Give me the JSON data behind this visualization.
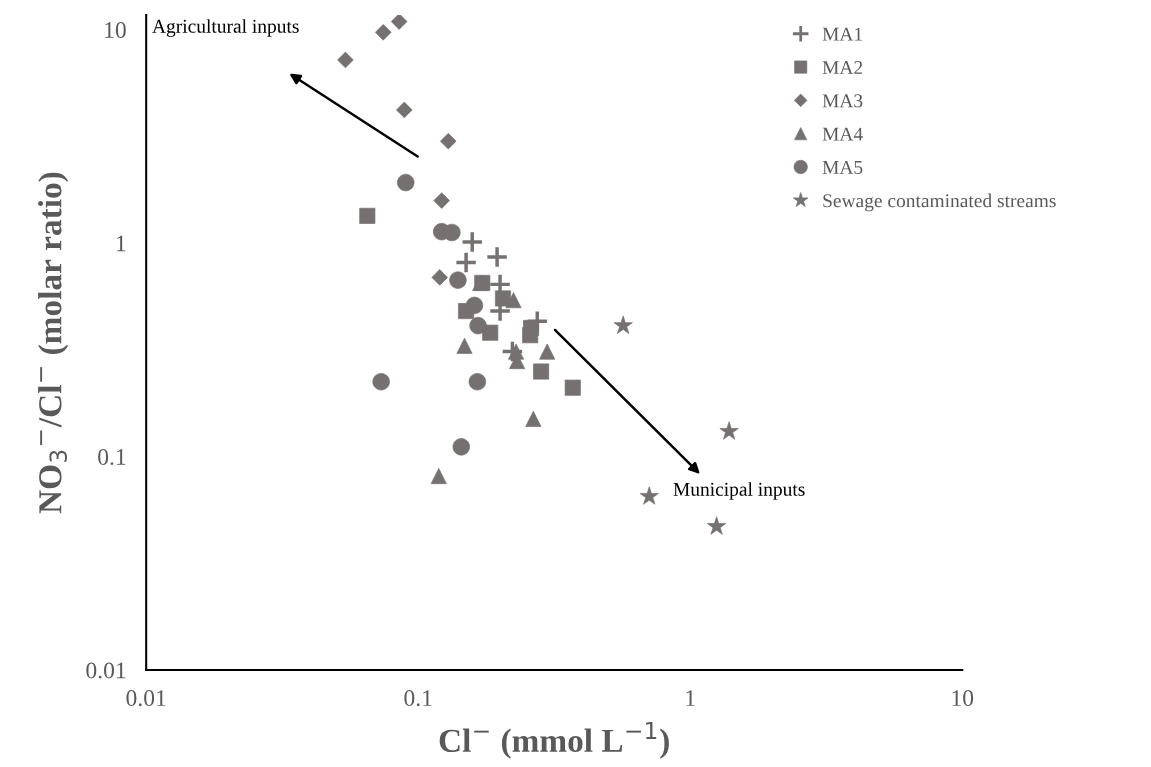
{
  "chart_data": {
    "type": "scatter",
    "xlabel": "Cl$^{−}$ (mmol L$^{−1}$)",
    "ylabel": "NO$_{3}$$^{−}$/Cl$^{−}$ (molar ratio)",
    "log": "xy",
    "xlim": [
      0.01,
      10
    ],
    "ylim": [
      0.01,
      11.7
    ],
    "xticks": [
      0.01,
      0.1,
      1,
      10
    ],
    "yticks": [
      0.01,
      0.1,
      1,
      10
    ],
    "grid": false,
    "legend": "top right",
    "series": [
      {
        "name": "MA1",
        "color": "#767171",
        "marker": "cross",
        "x": [
          0.158,
          0.195,
          0.15,
          0.2,
          0.2,
          0.274,
          0.222
        ],
        "values": [
          1.01,
          0.86,
          0.81,
          0.64,
          0.48,
          0.43,
          0.31
        ]
      },
      {
        "name": "MA2",
        "color": "#767171",
        "marker": "square",
        "x": [
          0.065,
          0.172,
          0.205,
          0.15,
          0.184,
          0.258,
          0.26,
          0.283,
          0.37
        ],
        "values": [
          1.34,
          0.65,
          0.55,
          0.48,
          0.38,
          0.37,
          0.4,
          0.25,
          0.21
        ]
      },
      {
        "name": "MA3",
        "color": "#767171",
        "marker": "diamond",
        "x": [
          0.0851,
          0.0744,
          0.054,
          0.0889,
          0.129,
          0.122,
          0.12
        ],
        "values": [
          10.9,
          9.7,
          7.2,
          4.2,
          3.0,
          1.58,
          0.69
        ]
      },
      {
        "name": "MA4",
        "color": "#767171",
        "marker": "triangle",
        "x": [
          0.169,
          0.224,
          0.148,
          0.229,
          0.231,
          0.298,
          0.265,
          0.119
        ],
        "values": [
          0.65,
          0.54,
          0.33,
          0.31,
          0.28,
          0.31,
          0.15,
          0.081
        ]
      },
      {
        "name": "MA5",
        "color": "#767171",
        "marker": "circle",
        "x": [
          0.09,
          0.122,
          0.133,
          0.14,
          0.161,
          0.166,
          0.0731,
          0.165,
          0.144
        ],
        "values": [
          1.92,
          1.13,
          1.12,
          0.67,
          0.51,
          0.41,
          0.224,
          0.224,
          0.111
        ]
      },
      {
        "name": "Sewage contaminated streams",
        "color": "#767171",
        "marker": "star",
        "x": [
          0.567,
          1.39,
          0.707,
          1.25
        ],
        "values": [
          0.41,
          0.131,
          0.065,
          0.047
        ]
      }
    ],
    "annotations": [
      "Agricultural inputs",
      "Municipal inputs"
    ]
  }
}
